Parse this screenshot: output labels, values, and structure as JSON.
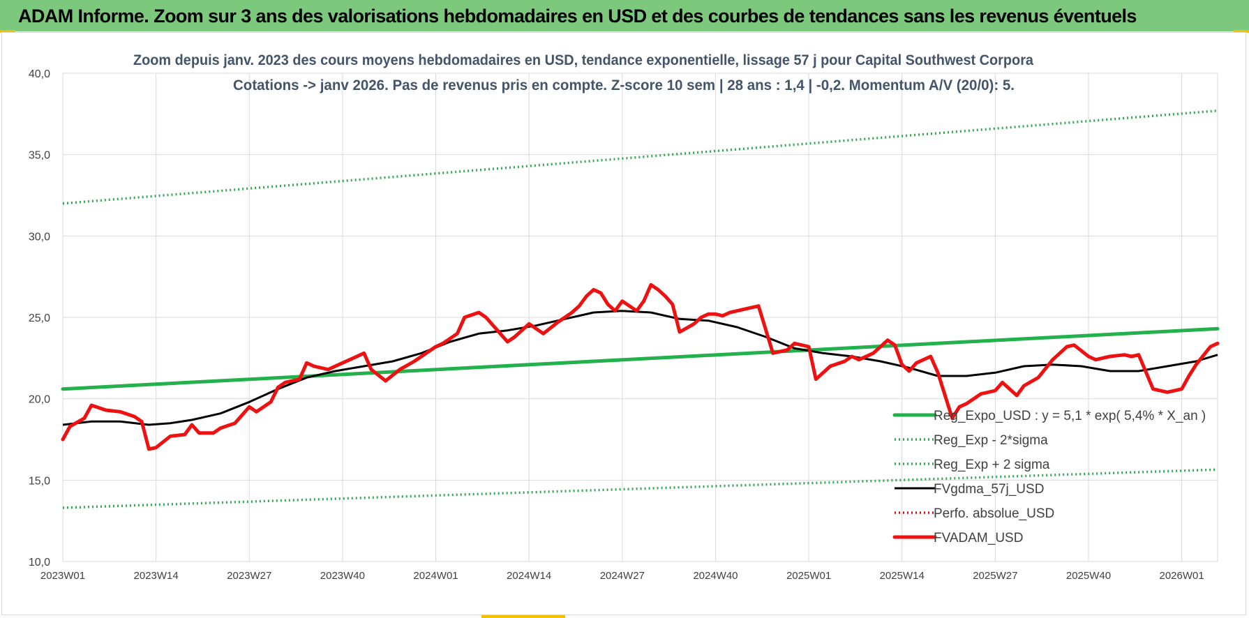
{
  "header": {
    "title": "ADAM Informe. Zoom sur 3 ans des valorisations hebdomadaires en USD et des courbes de tendances sans les revenus éventuels"
  },
  "colors": {
    "header_bg": "#7cc97d",
    "accent": "#f2c200",
    "reg_expo": "#22b14c",
    "reg_band": "#2fa84f",
    "fvgdma": "#000000",
    "perfo": "#e01010",
    "fvadam": "#ee1111"
  },
  "chart_data": {
    "type": "line",
    "title_lines": [
      "Zoom depuis janv. 2023 des cours moyens hebdomadaires en USD, tendance exponentielle, lissage 57 j pour Capital Southwest Corpora",
      "Cotations -> janv 2026. Pas de revenus pris en compte. Z-score 10 sem | 28 ans : 1,4 | -0,2. Momentum A/V (20/0): 5."
    ],
    "ylim": [
      10,
      40
    ],
    "y_ticks": [
      "10,0",
      "15,0",
      "20,0",
      "25,0",
      "30,0",
      "35,0",
      "40,0"
    ],
    "y_tick_values": [
      10,
      15,
      20,
      25,
      30,
      35,
      40
    ],
    "x_ticks": [
      "2023W01",
      "2023W14",
      "2023W27",
      "2023W40",
      "2024W01",
      "2024W14",
      "2024W27",
      "2024W40",
      "2025W01",
      "2025W14",
      "2025W27",
      "2025W40",
      "2026W01"
    ],
    "x_tick_index": [
      0,
      13,
      26,
      39,
      52,
      65,
      78,
      91,
      104,
      117,
      130,
      143,
      156
    ],
    "x_count": 162,
    "grid": true,
    "legend_position": "bottom-right inside plot",
    "legend": [
      "Reg_Expo_USD : y = 5,1 * exp( 5,4% * X_an )",
      "Reg_Exp - 2*sigma",
      "Reg_Exp + 2 sigma",
      "FVgdma_57j_USD",
      "Perfo. absolue_USD",
      "FVADAM_USD"
    ],
    "series": [
      {
        "name": "Reg_Expo_USD : y = 5,1 * exp( 5,4% * X_an )",
        "style": "solid-thick",
        "color": "#22b14c",
        "x": [
          0,
          161
        ],
        "values": [
          20.6,
          24.3
        ]
      },
      {
        "name": "Reg_Exp - 2*sigma",
        "style": "dotted",
        "color": "#2fa84f",
        "x": [
          0,
          161
        ],
        "values": [
          13.3,
          15.65
        ]
      },
      {
        "name": "Reg_Exp + 2 sigma",
        "style": "dotted",
        "color": "#2fa84f",
        "x": [
          0,
          161
        ],
        "values": [
          32.0,
          37.7
        ]
      },
      {
        "name": "FVgdma_57j_USD",
        "style": "solid",
        "color": "#000000",
        "x": [
          0,
          4,
          8,
          12,
          15,
          18,
          22,
          26,
          30,
          34,
          38,
          42,
          46,
          50,
          54,
          58,
          62,
          66,
          70,
          74,
          78,
          82,
          86,
          90,
          94,
          98,
          102,
          106,
          110,
          114,
          118,
          122,
          126,
          130,
          134,
          138,
          142,
          146,
          150,
          154,
          158,
          161
        ],
        "values": [
          18.4,
          18.6,
          18.6,
          18.4,
          18.5,
          18.7,
          19.1,
          19.8,
          20.6,
          21.3,
          21.7,
          22.0,
          22.3,
          22.8,
          23.5,
          24.0,
          24.2,
          24.5,
          24.9,
          25.3,
          25.4,
          25.3,
          24.9,
          24.8,
          24.4,
          23.8,
          23.1,
          22.8,
          22.6,
          22.3,
          21.9,
          21.4,
          21.4,
          21.6,
          22.0,
          22.1,
          22.0,
          21.7,
          21.7,
          22.0,
          22.3,
          22.7
        ]
      },
      {
        "name": "Perfo. absolue_USD",
        "style": "dotted",
        "color": "#e01010",
        "x": [],
        "values": []
      },
      {
        "name": "FVADAM_USD",
        "style": "solid-thick",
        "color": "#ee1111",
        "x": [
          0,
          1,
          3,
          4,
          6,
          8,
          10,
          11,
          12,
          13,
          15,
          17,
          18,
          19,
          21,
          22,
          24,
          26,
          27,
          29,
          30,
          31,
          33,
          34,
          35,
          37,
          39,
          40,
          42,
          43,
          45,
          47,
          49,
          50,
          52,
          53,
          55,
          56,
          58,
          59,
          61,
          62,
          63,
          65,
          67,
          69,
          70,
          71,
          72,
          73,
          74,
          75,
          76,
          77,
          78,
          79,
          80,
          81,
          82,
          83,
          84,
          85,
          86,
          88,
          89,
          90,
          91,
          92,
          93,
          94,
          95,
          97,
          99,
          100,
          101,
          102,
          104,
          105,
          107,
          109,
          110,
          111,
          113,
          115,
          116,
          117,
          118,
          119,
          121,
          122,
          124,
          125,
          126,
          128,
          130,
          131,
          133,
          134,
          136,
          138,
          140,
          141,
          143,
          144,
          145,
          146,
          148,
          149,
          150,
          152,
          154,
          156,
          157,
          158,
          160,
          161
        ],
        "values": [
          17.5,
          18.3,
          18.8,
          19.6,
          19.3,
          19.2,
          18.9,
          18.6,
          16.9,
          17.0,
          17.7,
          17.8,
          18.4,
          17.9,
          17.9,
          18.2,
          18.5,
          19.5,
          19.2,
          19.8,
          20.7,
          21.0,
          21.2,
          22.2,
          22.0,
          21.8,
          22.2,
          22.4,
          22.8,
          21.8,
          21.1,
          21.8,
          22.3,
          22.6,
          23.2,
          23.4,
          24.0,
          25.0,
          25.3,
          25.0,
          24.0,
          23.5,
          23.8,
          24.6,
          24.0,
          24.7,
          25.0,
          25.3,
          25.7,
          26.3,
          26.7,
          26.5,
          25.8,
          25.4,
          26.0,
          25.7,
          25.4,
          26.0,
          27.0,
          26.7,
          26.3,
          25.8,
          24.1,
          24.6,
          25.0,
          25.2,
          25.2,
          25.1,
          25.3,
          25.4,
          25.5,
          25.7,
          22.8,
          22.9,
          23.0,
          23.4,
          23.2,
          21.2,
          22.0,
          22.3,
          22.6,
          22.4,
          22.8,
          23.6,
          23.3,
          22.1,
          21.7,
          22.2,
          22.6,
          21.6,
          18.8,
          19.5,
          19.7,
          20.3,
          20.5,
          21.0,
          20.2,
          20.8,
          21.3,
          22.4,
          23.2,
          23.3,
          22.6,
          22.4,
          22.5,
          22.6,
          22.7,
          22.6,
          22.7,
          20.6,
          20.4,
          20.6,
          21.4,
          22.1,
          23.2,
          23.4
        ]
      }
    ]
  }
}
